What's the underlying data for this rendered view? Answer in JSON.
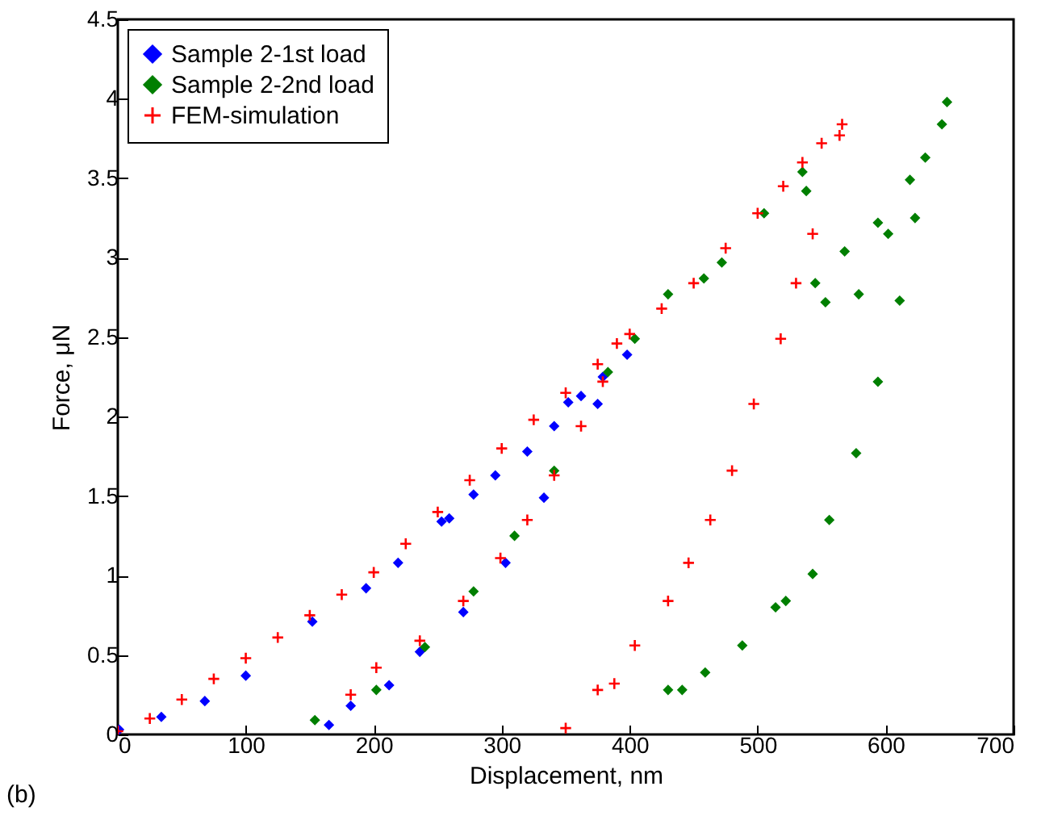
{
  "chart_data": {
    "type": "scatter",
    "xlabel": "Displacement, nm",
    "ylabel": "Force, μN",
    "annotations": [
      "(b)"
    ],
    "legend": "top left",
    "grid": false,
    "xlim": [
      0,
      700
    ],
    "ylim": [
      0,
      4.5
    ],
    "xticks": [
      0,
      100,
      200,
      300,
      400,
      500,
      600,
      700
    ],
    "yticks": [
      0,
      0.5,
      1,
      1.5,
      2,
      2.5,
      3,
      3.5,
      4,
      4.5
    ],
    "series": [
      {
        "name": "Sample 2-1st load",
        "color": "#0000ff",
        "marker": "diamond",
        "x": [
          1,
          34,
          68,
          100,
          152,
          194,
          219,
          253,
          259,
          278,
          295,
          320,
          341,
          352,
          362,
          379,
          398,
          375,
          333,
          303,
          270,
          236,
          212,
          182,
          165
        ],
        "values": [
          0.03,
          0.11,
          0.21,
          0.37,
          0.71,
          0.92,
          1.08,
          1.34,
          1.36,
          1.51,
          1.63,
          1.78,
          1.94,
          2.09,
          2.13,
          2.25,
          2.39,
          2.08,
          1.49,
          1.08,
          0.77,
          0.52,
          0.31,
          0.18,
          0.06
        ]
      },
      {
        "name": "Sample 2-2nd load",
        "color": "#007f00",
        "marker": "diamond",
        "x": [
          154,
          202,
          240,
          278,
          310,
          341,
          383,
          404,
          430,
          458,
          472,
          505,
          535,
          538,
          545,
          553,
          568,
          579,
          594,
          602,
          619,
          631,
          648,
          644,
          623,
          611,
          594,
          577,
          556,
          543,
          522,
          514,
          488,
          459,
          441,
          430
        ],
        "values": [
          0.09,
          0.28,
          0.55,
          0.9,
          1.25,
          1.66,
          2.28,
          2.49,
          2.77,
          2.87,
          2.97,
          3.28,
          3.54,
          3.42,
          2.84,
          2.72,
          3.04,
          2.77,
          3.22,
          3.15,
          3.49,
          3.63,
          3.98,
          3.84,
          3.25,
          2.73,
          2.22,
          1.77,
          1.35,
          1.01,
          0.84,
          0.8,
          0.56,
          0.39,
          0.28,
          0.28
        ]
      },
      {
        "name": "FEM-simulation",
        "color": "#ff0000",
        "marker": "cross",
        "x": [
          0,
          25,
          50,
          75,
          100,
          125,
          150,
          175,
          200,
          225,
          250,
          275,
          300,
          325,
          350,
          375,
          400,
          425,
          450,
          475,
          500,
          520,
          535,
          550,
          566,
          182,
          202,
          236,
          270,
          299,
          320,
          341,
          362,
          379,
          390,
          564,
          543,
          530,
          518,
          497,
          480,
          463,
          446,
          430,
          404,
          388,
          375,
          350
        ],
        "values": [
          0.02,
          0.1,
          0.22,
          0.35,
          0.48,
          0.61,
          0.75,
          0.88,
          1.02,
          1.2,
          1.4,
          1.6,
          1.8,
          1.98,
          2.15,
          2.33,
          2.52,
          2.68,
          2.84,
          3.06,
          3.28,
          3.45,
          3.6,
          3.72,
          3.84,
          0.25,
          0.42,
          0.59,
          0.84,
          1.11,
          1.35,
          1.63,
          1.94,
          2.22,
          2.46,
          3.77,
          3.15,
          2.84,
          2.49,
          2.08,
          1.66,
          1.35,
          1.08,
          0.84,
          0.56,
          0.32,
          0.28,
          0.04
        ]
      }
    ]
  }
}
